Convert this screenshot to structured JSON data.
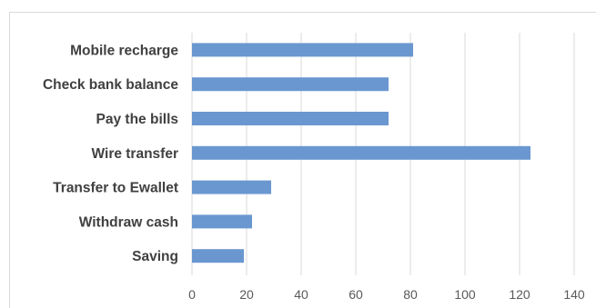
{
  "chart_data": {
    "type": "bar",
    "orientation": "horizontal",
    "categories": [
      "Mobile recharge",
      "Check bank balance",
      "Pay the bills",
      "Wire transfer",
      "Transfer to Ewallet",
      "Withdraw cash",
      "Saving"
    ],
    "values": [
      81,
      72,
      72,
      124,
      29,
      22,
      19
    ],
    "xlim": [
      0,
      140
    ],
    "xticks": [
      "0",
      "20",
      "40",
      "60",
      "80",
      "100",
      "120",
      "140"
    ],
    "grid": "vertical",
    "bar_color": "#6a97d0",
    "title": "",
    "xlabel": "",
    "ylabel": ""
  }
}
